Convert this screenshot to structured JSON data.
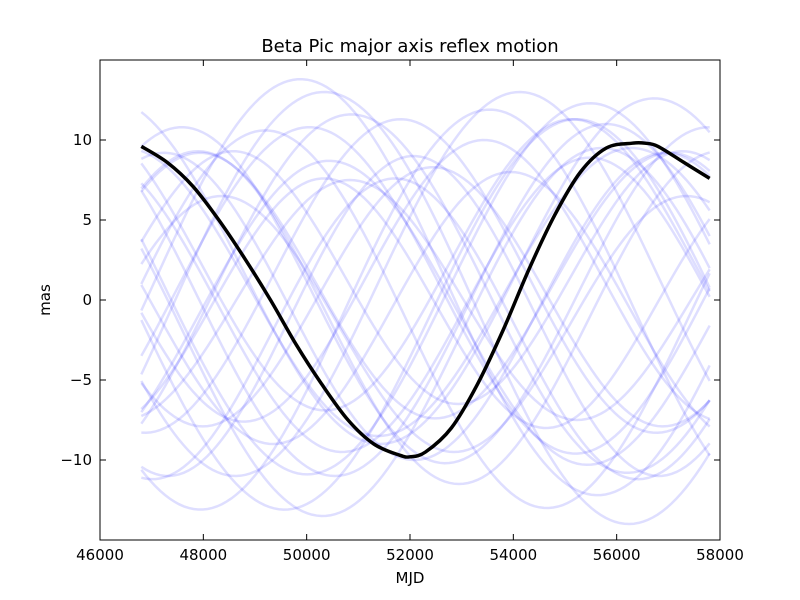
{
  "chart_data": {
    "type": "line",
    "title": "Beta Pic major axis reflex motion",
    "xlabel": "MJD",
    "ylabel": "mas",
    "xlim": [
      46000,
      58000
    ],
    "ylim": [
      -15,
      15
    ],
    "x_ticks": [
      {
        "value": 46000,
        "label": "46000"
      },
      {
        "value": 48000,
        "label": "48000"
      },
      {
        "value": 50000,
        "label": "50000"
      },
      {
        "value": 52000,
        "label": "52000"
      },
      {
        "value": 54000,
        "label": "54000"
      },
      {
        "value": 56000,
        "label": "56000"
      },
      {
        "value": 58000,
        "label": "58000"
      }
    ],
    "y_ticks": [
      {
        "value": -10,
        "label": "−10"
      },
      {
        "value": -5,
        "label": "−5"
      },
      {
        "value": 0,
        "label": "0"
      },
      {
        "value": 5,
        "label": "5"
      },
      {
        "value": 10,
        "label": "10"
      }
    ],
    "grid": false,
    "legend": "none",
    "colors": {
      "best_fit": "#000000",
      "samples": "#0000ff"
    },
    "best_fit": {
      "x": [
        46800,
        47300,
        47800,
        48300,
        48800,
        49300,
        49800,
        50300,
        50800,
        51300,
        51800,
        52000,
        52300,
        52800,
        53300,
        53800,
        54300,
        54800,
        55300,
        55800,
        56300,
        56550,
        56800,
        57300,
        57800
      ],
      "y": [
        9.6,
        8.6,
        7.1,
        5.0,
        2.6,
        0.0,
        -2.8,
        -5.3,
        -7.5,
        -9.0,
        -9.7,
        -9.8,
        -9.5,
        -8.0,
        -5.3,
        -1.9,
        1.9,
        5.3,
        8.0,
        9.5,
        9.8,
        9.8,
        9.6,
        8.6,
        7.6
      ]
    },
    "posterior_samples": [
      {
        "amplitude": 9.0,
        "period": 9800,
        "phase": 0.2,
        "offset": 0.5
      },
      {
        "amplitude": 11.0,
        "period": 10500,
        "phase": 0.9,
        "offset": 0.0
      },
      {
        "amplitude": 8.5,
        "period": 9200,
        "phase": 1.4,
        "offset": -0.5
      },
      {
        "amplitude": 12.0,
        "period": 11000,
        "phase": 2.1,
        "offset": 1.0
      },
      {
        "amplitude": 10.0,
        "period": 9500,
        "phase": 2.8,
        "offset": -1.0
      },
      {
        "amplitude": 7.5,
        "period": 8800,
        "phase": 3.4,
        "offset": 0.0
      },
      {
        "amplitude": 9.5,
        "period": 10000,
        "phase": 4.0,
        "offset": -0.8
      },
      {
        "amplitude": 13.0,
        "period": 11500,
        "phase": 4.6,
        "offset": 0.8
      },
      {
        "amplitude": 8.0,
        "period": 9000,
        "phase": 5.2,
        "offset": -1.5
      },
      {
        "amplitude": 10.5,
        "period": 10200,
        "phase": 5.8,
        "offset": 0.3
      },
      {
        "amplitude": 9.2,
        "period": 9600,
        "phase": 0.6,
        "offset": -0.3
      },
      {
        "amplitude": 11.5,
        "period": 10800,
        "phase": 1.1,
        "offset": -2.0
      },
      {
        "amplitude": 8.8,
        "period": 9300,
        "phase": 1.8,
        "offset": 1.2
      },
      {
        "amplitude": 12.5,
        "period": 11200,
        "phase": 2.5,
        "offset": -0.6
      },
      {
        "amplitude": 9.8,
        "period": 9900,
        "phase": 3.1,
        "offset": 1.5
      },
      {
        "amplitude": 7.8,
        "period": 8600,
        "phase": 3.7,
        "offset": -0.2
      },
      {
        "amplitude": 10.2,
        "period": 10300,
        "phase": 4.3,
        "offset": 0.6
      },
      {
        "amplitude": 11.8,
        "period": 10900,
        "phase": 4.9,
        "offset": -1.2
      },
      {
        "amplitude": 8.3,
        "period": 9100,
        "phase": 5.5,
        "offset": 0.9
      },
      {
        "amplitude": 9.6,
        "period": 9700,
        "phase": 6.0,
        "offset": -0.4
      },
      {
        "amplitude": 10.8,
        "period": 10600,
        "phase": 0.4,
        "offset": 1.8
      },
      {
        "amplitude": 12.2,
        "period": 11300,
        "phase": 1.6,
        "offset": -0.9
      },
      {
        "amplitude": 8.1,
        "period": 8900,
        "phase": 2.3,
        "offset": 0.2
      },
      {
        "amplitude": 9.4,
        "period": 9400,
        "phase": 3.0,
        "offset": -1.8
      },
      {
        "amplitude": 11.2,
        "period": 10700,
        "phase": 3.9,
        "offset": 0.4
      },
      {
        "amplitude": 13.5,
        "period": 11800,
        "phase": 4.4,
        "offset": -0.5
      },
      {
        "amplitude": 7.9,
        "period": 8700,
        "phase": 5.0,
        "offset": 1.4
      },
      {
        "amplitude": 10.4,
        "period": 10100,
        "phase": 5.6,
        "offset": -1.1
      },
      {
        "amplitude": 9.1,
        "period": 9550,
        "phase": 0.8,
        "offset": 2.2
      },
      {
        "amplitude": 11.6,
        "period": 10950,
        "phase": 1.3,
        "offset": 0.7
      }
    ]
  }
}
